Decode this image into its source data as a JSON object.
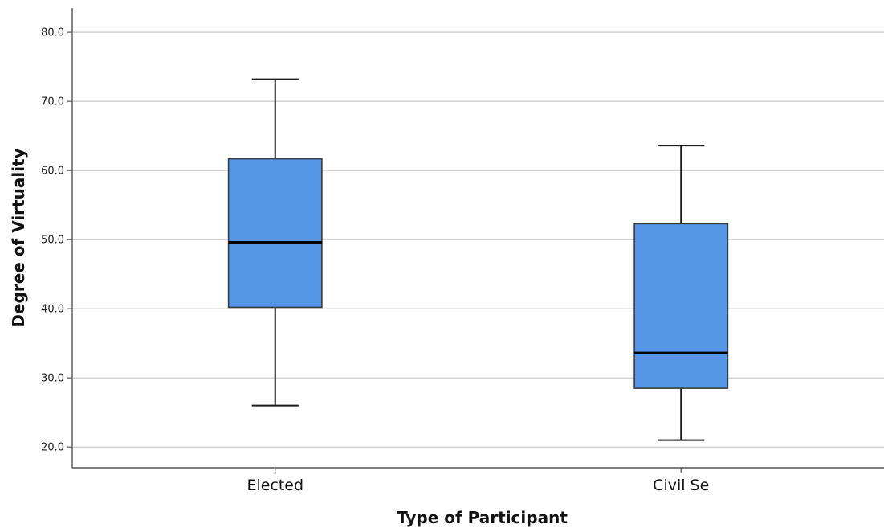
{
  "chart_data": {
    "type": "boxplot",
    "title": "",
    "xlabel": "Type of Participant",
    "ylabel": "Degree of Virtuality",
    "ylim": [
      17.0,
      83.5
    ],
    "yticks": [
      20.0,
      30.0,
      40.0,
      50.0,
      60.0,
      70.0,
      80.0
    ],
    "ytick_labels": [
      "20.0",
      "30.0",
      "40.0",
      "50.0",
      "60.0",
      "70.0",
      "80.0"
    ],
    "grid": true,
    "categories": [
      "Elected",
      "Civil Se"
    ],
    "boxes": [
      {
        "category": "Elected",
        "min": 26.0,
        "q1": 40.2,
        "median": 49.6,
        "q3": 61.7,
        "max": 73.2
      },
      {
        "category": "Civil Se",
        "min": 21.0,
        "q1": 28.5,
        "median": 33.6,
        "q3": 52.3,
        "max": 63.6
      }
    ],
    "colors": {
      "box_fill": "#5596e6",
      "box_stroke": "#3b3b3b",
      "median": "#000000",
      "whisker": "#1a1a1a",
      "grid": "#c8c8c8",
      "axis": "#555555"
    }
  }
}
